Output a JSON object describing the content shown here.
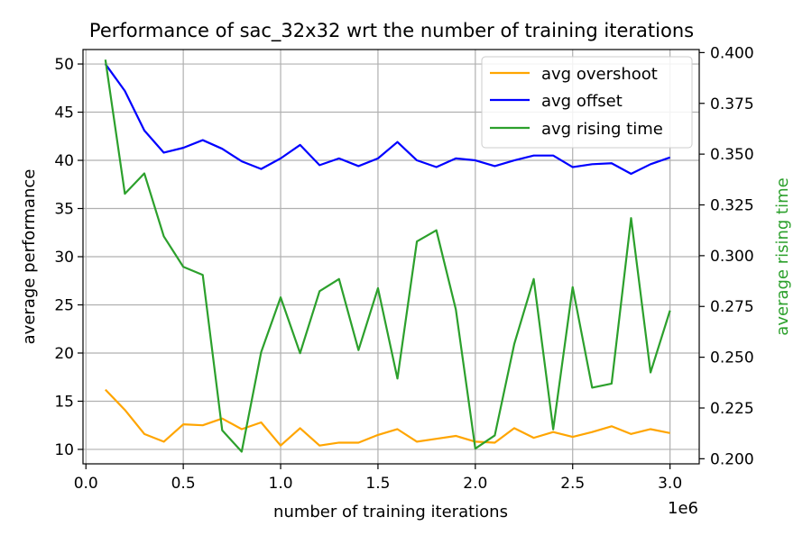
{
  "chart_data": {
    "type": "line",
    "title": "Performance of sac_32x32 wrt the number of training iterations",
    "xlabel": "number of training iterations",
    "x_offset_label": "1e6",
    "ylabel_left": "average performance",
    "ylabel_right": "average rising time",
    "x_ticks": [
      "0.0",
      "0.5",
      "1.0",
      "1.5",
      "2.0",
      "2.5",
      "3.0"
    ],
    "y_left_ticks": [
      "10",
      "15",
      "20",
      "25",
      "30",
      "35",
      "40",
      "45",
      "50"
    ],
    "y_right_ticks": [
      "0.200",
      "0.225",
      "0.250",
      "0.275",
      "0.300",
      "0.325",
      "0.350",
      "0.375",
      "0.400"
    ],
    "xlim": [
      -0.015,
      3.15
    ],
    "ylim_left": [
      8.5,
      51.5
    ],
    "ylim_right": [
      0.1975,
      0.4015
    ],
    "grid": true,
    "legend_position": "top-right",
    "x": [
      0.1,
      0.2,
      0.3,
      0.4,
      0.5,
      0.6,
      0.7,
      0.8,
      0.9,
      1.0,
      1.1,
      1.2,
      1.3,
      1.4,
      1.5,
      1.6,
      1.7,
      1.8,
      1.9,
      2.0,
      2.1,
      2.2,
      2.3,
      2.4,
      2.5,
      2.6,
      2.7,
      2.8,
      2.9,
      3.0
    ],
    "series": [
      {
        "name": "avg overshoot",
        "axis": "left",
        "color": "#ffa500",
        "values": [
          16.2,
          14.1,
          11.6,
          10.8,
          12.6,
          12.5,
          13.2,
          12.1,
          12.8,
          10.4,
          12.2,
          10.4,
          10.7,
          10.7,
          11.5,
          12.1,
          10.8,
          11.1,
          11.4,
          10.8,
          10.7,
          12.2,
          11.2,
          11.8,
          11.3,
          11.8,
          12.4,
          11.6,
          12.1,
          11.7
        ]
      },
      {
        "name": "avg offset",
        "axis": "left",
        "color": "#0000ff",
        "values": [
          50.0,
          47.2,
          43.1,
          40.8,
          41.3,
          42.1,
          41.2,
          39.9,
          39.1,
          40.2,
          41.6,
          39.5,
          40.2,
          39.4,
          40.2,
          41.9,
          40.0,
          39.3,
          40.2,
          40.0,
          39.4,
          40.0,
          40.5,
          40.5,
          39.3,
          39.6,
          39.7,
          38.6,
          39.6,
          40.3
        ]
      },
      {
        "name": "avg rising time",
        "axis": "right",
        "color": "#2ca02c",
        "values": [
          0.3965,
          0.3305,
          0.3405,
          0.3095,
          0.2945,
          0.2905,
          0.214,
          0.2035,
          0.2525,
          0.2795,
          0.252,
          0.2825,
          0.2885,
          0.2535,
          0.284,
          0.2395,
          0.307,
          0.3125,
          0.2735,
          0.205,
          0.2115,
          0.2565,
          0.2885,
          0.2145,
          0.2845,
          0.235,
          0.237,
          0.3185,
          0.2425,
          0.273
        ]
      }
    ]
  }
}
